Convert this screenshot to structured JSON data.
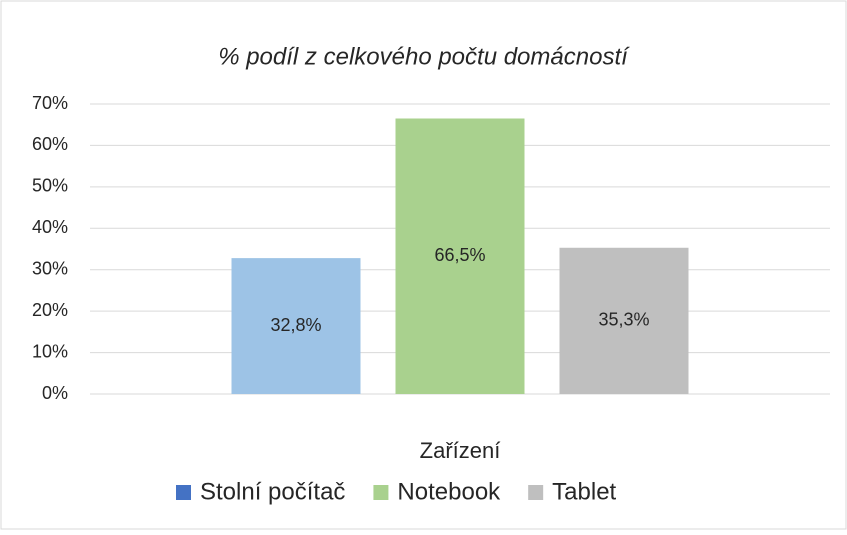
{
  "chart_data": {
    "type": "bar",
    "title": "% podíl z celkového počtu domácností",
    "x_label": "Zařízení",
    "categories": [
      null
    ],
    "series": [
      {
        "name": "Stolní počítač",
        "color": "#9dc3e6",
        "legend_color": "#4472c4",
        "values": [
          32.8
        ],
        "value_labels": [
          "32,8%"
        ]
      },
      {
        "name": "Notebook",
        "color": "#a9d18e",
        "legend_color": "#a9d18e",
        "values": [
          66.5
        ],
        "value_labels": [
          "66,5%"
        ]
      },
      {
        "name": "Tablet",
        "color": "#bfbfbf",
        "legend_color": "#bfbfbf",
        "values": [
          35.3
        ],
        "value_labels": [
          "35,3%"
        ]
      }
    ],
    "ylim": [
      0,
      70
    ],
    "yticks": [
      {
        "value": 0,
        "label": "0%"
      },
      {
        "value": 10,
        "label": "10%"
      },
      {
        "value": 20,
        "label": "20%"
      },
      {
        "value": 30,
        "label": "30%"
      },
      {
        "value": 40,
        "label": "40%"
      },
      {
        "value": 50,
        "label": "50%"
      },
      {
        "value": 60,
        "label": "60%"
      },
      {
        "value": 70,
        "label": "70%"
      }
    ],
    "grid": true,
    "legend": "bottom"
  }
}
